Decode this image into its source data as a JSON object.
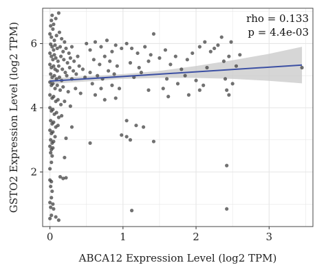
{
  "chart_data": {
    "type": "scatter",
    "xlabel": "ABCA12 Expression Level (log2 TPM)",
    "ylabel": "GSTO2 Expression Level (log2 TPM)",
    "xlim": [
      -0.1,
      3.6
    ],
    "ylim": [
      0.3,
      7.1
    ],
    "x_ticks": [
      0,
      1,
      2,
      3
    ],
    "y_ticks": [
      2,
      4,
      6
    ],
    "x_tick_labels": [
      "0",
      "1",
      "2",
      "3"
    ],
    "y_tick_labels": [
      "2",
      "4",
      "6"
    ],
    "grid": true,
    "annotations": [
      "rho = 0.133",
      "p = 4.4e-03"
    ],
    "colors": {
      "points": "#3a3a3a",
      "trend_line": "#3b4fa3",
      "confidence_band": "#c8c8c8",
      "grid": "#e6e6e6",
      "panel_border": "#444444"
    },
    "trend_line": {
      "x": [
        0.0,
        3.45
      ],
      "y": [
        4.83,
        5.33
      ]
    },
    "confidence_band": {
      "x": [
        0.0,
        0.5,
        1.0,
        1.5,
        2.0,
        2.5,
        3.0,
        3.45
      ],
      "upper": [
        4.92,
        4.98,
        5.05,
        5.15,
        5.3,
        5.48,
        5.68,
        5.9
      ],
      "lower": [
        4.74,
        4.82,
        4.9,
        4.93,
        4.93,
        4.9,
        4.84,
        4.76
      ]
    },
    "points": [
      [
        0.03,
        6.88
      ],
      [
        0.02,
        6.72
      ],
      [
        0.01,
        6.55
      ],
      [
        0.04,
        6.45
      ],
      [
        0.05,
        6.6
      ],
      [
        0.08,
        6.78
      ],
      [
        0.12,
        6.95
      ],
      [
        0.0,
        6.3
      ],
      [
        0.02,
        6.2
      ],
      [
        0.06,
        6.1
      ],
      [
        0.09,
        6.25
      ],
      [
        0.13,
        6.35
      ],
      [
        0.16,
        6.15
      ],
      [
        0.2,
        6.05
      ],
      [
        0.01,
        5.98
      ],
      [
        0.03,
        5.9
      ],
      [
        0.05,
        5.8
      ],
      [
        0.07,
        5.95
      ],
      [
        0.1,
        5.85
      ],
      [
        0.14,
        5.9
      ],
      [
        0.18,
        5.75
      ],
      [
        0.22,
        5.85
      ],
      [
        0.26,
        5.7
      ],
      [
        0.3,
        5.9
      ],
      [
        0.0,
        5.7
      ],
      [
        0.02,
        5.6
      ],
      [
        0.04,
        5.5
      ],
      [
        0.06,
        5.65
      ],
      [
        0.08,
        5.55
      ],
      [
        0.11,
        5.45
      ],
      [
        0.15,
        5.6
      ],
      [
        0.19,
        5.5
      ],
      [
        0.24,
        5.4
      ],
      [
        0.28,
        5.55
      ],
      [
        0.33,
        5.45
      ],
      [
        0.38,
        5.6
      ],
      [
        0.0,
        5.35
      ],
      [
        0.02,
        5.25
      ],
      [
        0.05,
        5.3
      ],
      [
        0.07,
        5.2
      ],
      [
        0.1,
        5.15
      ],
      [
        0.12,
        5.3
      ],
      [
        0.17,
        5.2
      ],
      [
        0.21,
        5.1
      ],
      [
        0.27,
        5.25
      ],
      [
        0.32,
        5.15
      ],
      [
        0.4,
        5.3
      ],
      [
        0.45,
        5.2
      ],
      [
        0.01,
        5.05
      ],
      [
        0.03,
        4.95
      ],
      [
        0.06,
        5.0
      ],
      [
        0.09,
        4.9
      ],
      [
        0.13,
        4.95
      ],
      [
        0.16,
        4.85
      ],
      [
        0.23,
        5.0
      ],
      [
        0.3,
        4.9
      ],
      [
        0.36,
        5.05
      ],
      [
        0.48,
        4.95
      ],
      [
        0.0,
        4.8
      ],
      [
        0.02,
        4.7
      ],
      [
        0.04,
        4.75
      ],
      [
        0.07,
        4.6
      ],
      [
        0.1,
        4.7
      ],
      [
        0.14,
        4.55
      ],
      [
        0.18,
        4.65
      ],
      [
        0.25,
        4.5
      ],
      [
        0.35,
        4.6
      ],
      [
        0.42,
        4.45
      ],
      [
        0.0,
        4.4
      ],
      [
        0.03,
        4.3
      ],
      [
        0.05,
        4.35
      ],
      [
        0.08,
        4.2
      ],
      [
        0.11,
        4.25
      ],
      [
        0.15,
        4.1
      ],
      [
        0.2,
        4.2
      ],
      [
        0.28,
        4.05
      ],
      [
        0.0,
        4.0
      ],
      [
        0.02,
        3.9
      ],
      [
        0.04,
        3.95
      ],
      [
        0.06,
        3.8
      ],
      [
        0.09,
        3.85
      ],
      [
        0.12,
        3.7
      ],
      [
        0.16,
        3.75
      ],
      [
        0.01,
        3.6
      ],
      [
        0.03,
        3.5
      ],
      [
        0.05,
        3.55
      ],
      [
        0.08,
        3.4
      ],
      [
        0.11,
        3.45
      ],
      [
        0.0,
        3.3
      ],
      [
        0.02,
        3.2
      ],
      [
        0.04,
        3.25
      ],
      [
        0.07,
        3.1
      ],
      [
        0.01,
        3.0
      ],
      [
        0.03,
        2.9
      ],
      [
        0.05,
        2.95
      ],
      [
        0.0,
        2.8
      ],
      [
        0.02,
        2.7
      ],
      [
        0.04,
        2.75
      ],
      [
        0.01,
        2.6
      ],
      [
        0.03,
        2.5
      ],
      [
        0.02,
        2.3
      ],
      [
        0.0,
        2.1
      ],
      [
        0.14,
        1.85
      ],
      [
        0.18,
        1.8
      ],
      [
        0.22,
        1.82
      ],
      [
        0.0,
        1.75
      ],
      [
        0.02,
        1.7
      ],
      [
        0.01,
        1.55
      ],
      [
        0.03,
        1.4
      ],
      [
        0.02,
        1.2
      ],
      [
        0.0,
        1.05
      ],
      [
        0.04,
        1.0
      ],
      [
        0.01,
        0.9
      ],
      [
        0.05,
        0.85
      ],
      [
        0.02,
        0.65
      ],
      [
        0.0,
        0.55
      ],
      [
        0.08,
        0.6
      ],
      [
        0.12,
        0.5
      ],
      [
        0.5,
        6.0
      ],
      [
        0.55,
        5.8
      ],
      [
        0.62,
        6.05
      ],
      [
        0.7,
        5.9
      ],
      [
        0.78,
        6.1
      ],
      [
        0.85,
        5.75
      ],
      [
        0.9,
        5.95
      ],
      [
        0.98,
        5.85
      ],
      [
        0.6,
        5.5
      ],
      [
        0.68,
        5.35
      ],
      [
        0.75,
        5.6
      ],
      [
        0.82,
        5.45
      ],
      [
        0.92,
        5.3
      ],
      [
        0.55,
        5.1
      ],
      [
        0.65,
        5.0
      ],
      [
        0.72,
        4.9
      ],
      [
        0.8,
        5.15
      ],
      [
        0.88,
        5.05
      ],
      [
        0.58,
        4.75
      ],
      [
        0.7,
        4.6
      ],
      [
        0.85,
        4.7
      ],
      [
        0.62,
        4.4
      ],
      [
        0.75,
        4.25
      ],
      [
        0.9,
        4.3
      ],
      [
        1.05,
        6.0
      ],
      [
        1.12,
        5.85
      ],
      [
        1.2,
        5.7
      ],
      [
        1.3,
        5.9
      ],
      [
        1.38,
        5.65
      ],
      [
        1.1,
        5.4
      ],
      [
        1.22,
        5.25
      ],
      [
        1.35,
        5.45
      ],
      [
        1.15,
        4.95
      ],
      [
        1.25,
        5.1
      ],
      [
        1.42,
        6.3
      ],
      [
        1.5,
        5.55
      ],
      [
        1.58,
        5.8
      ],
      [
        1.65,
        5.35
      ],
      [
        1.72,
        5.6
      ],
      [
        1.8,
        5.2
      ],
      [
        1.88,
        5.5
      ],
      [
        1.95,
        5.7
      ],
      [
        2.05,
        5.9
      ],
      [
        2.12,
        6.05
      ],
      [
        2.2,
        5.75
      ],
      [
        2.3,
        5.95
      ],
      [
        2.38,
        5.45
      ],
      [
        2.45,
        5.6
      ],
      [
        2.55,
        5.3
      ],
      [
        2.6,
        5.65
      ],
      [
        2.25,
        5.85
      ],
      [
        2.48,
        6.05
      ],
      [
        2.35,
        6.2
      ],
      [
        2.15,
        5.25
      ],
      [
        1.6,
        4.9
      ],
      [
        1.75,
        4.75
      ],
      [
        1.85,
        5.0
      ],
      [
        2.0,
        4.85
      ],
      [
        2.1,
        4.7
      ],
      [
        2.4,
        4.9
      ],
      [
        2.5,
        4.75
      ],
      [
        2.42,
        4.55
      ],
      [
        1.55,
        4.6
      ],
      [
        1.62,
        4.35
      ],
      [
        1.9,
        4.4
      ],
      [
        2.05,
        4.55
      ],
      [
        2.45,
        4.4
      ],
      [
        1.05,
        3.6
      ],
      [
        1.18,
        3.45
      ],
      [
        1.28,
        3.4
      ],
      [
        0.98,
        3.15
      ],
      [
        1.05,
        3.1
      ],
      [
        1.1,
        3.0
      ],
      [
        0.55,
        2.9
      ],
      [
        1.42,
        2.95
      ],
      [
        0.3,
        3.4
      ],
      [
        0.22,
        3.05
      ],
      [
        0.2,
        2.45
      ],
      [
        2.42,
        2.2
      ],
      [
        1.12,
        0.8
      ],
      [
        2.42,
        0.85
      ],
      [
        3.45,
        5.25
      ],
      [
        0.95,
        4.6
      ],
      [
        1.35,
        4.55
      ]
    ]
  }
}
